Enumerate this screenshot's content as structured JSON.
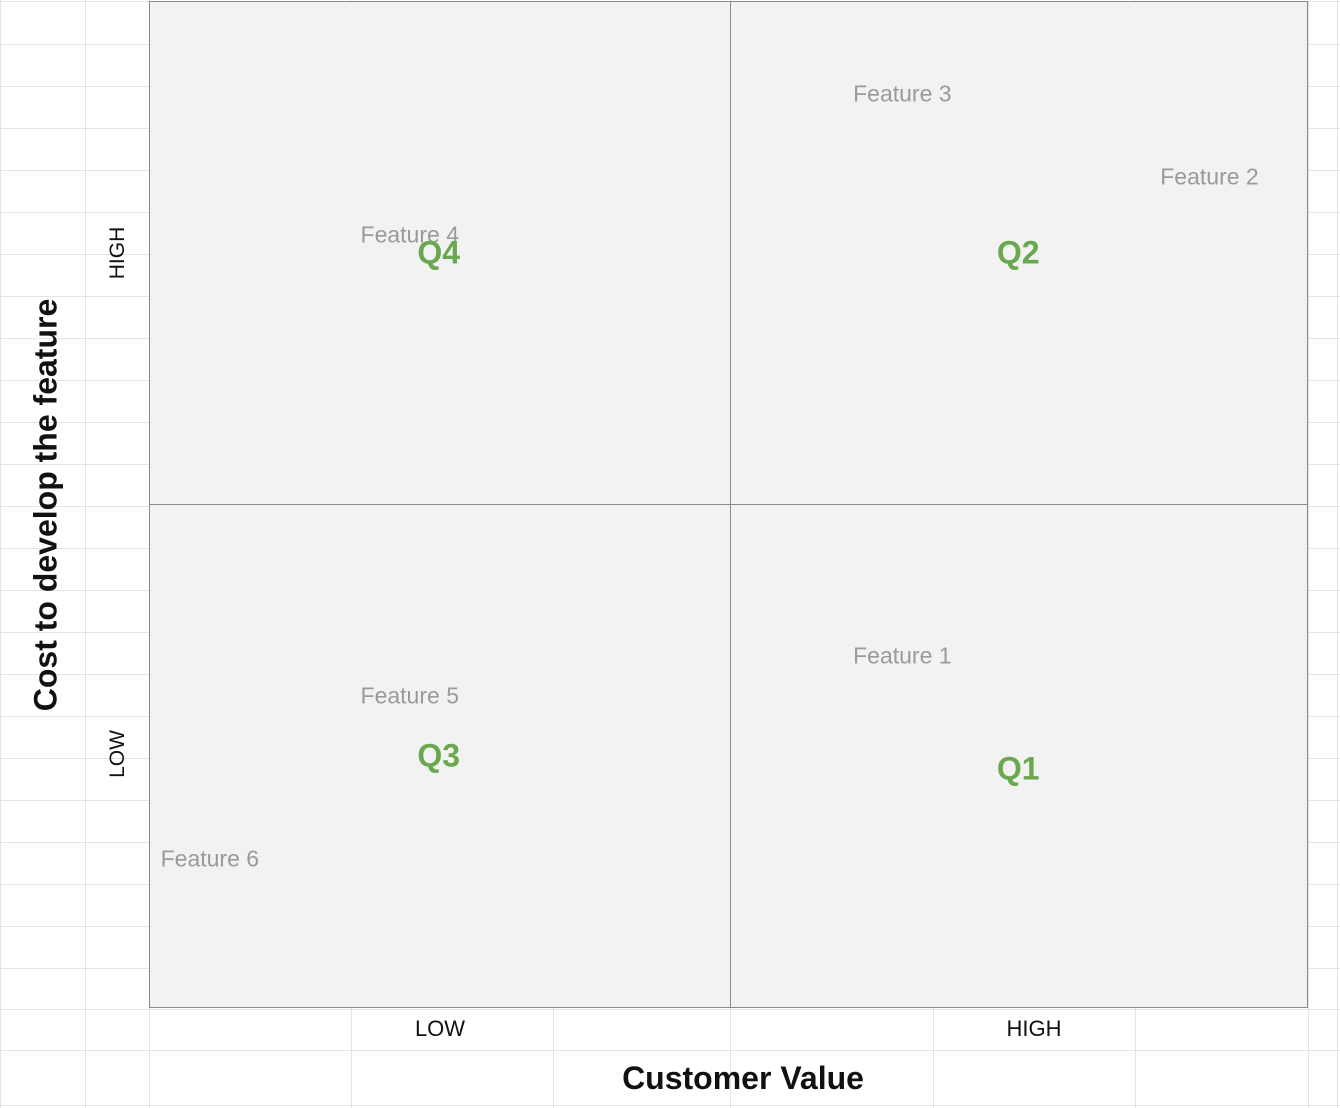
{
  "chart_data": {
    "type": "scatter",
    "title": "",
    "xlabel": "Customer Value",
    "ylabel": "Cost to develop the feature",
    "x_ticks": [
      "LOW",
      "HIGH"
    ],
    "y_ticks": [
      "LOW",
      "HIGH"
    ],
    "xlim": [
      0,
      4
    ],
    "ylim": [
      0,
      4
    ],
    "quadrants": [
      {
        "label": "Q4",
        "x": 1,
        "y": 3
      },
      {
        "label": "Q2",
        "x": 3,
        "y": 3
      },
      {
        "label": "Q3",
        "x": 1,
        "y": 1
      },
      {
        "label": "Q1",
        "x": 3,
        "y": 0.95
      }
    ],
    "points": [
      {
        "label": "Feature 1",
        "x": 2.6,
        "y": 1.4
      },
      {
        "label": "Feature 2",
        "x": 3.66,
        "y": 3.3
      },
      {
        "label": "Feature 3",
        "x": 2.6,
        "y": 3.63
      },
      {
        "label": "Feature 4",
        "x": 0.9,
        "y": 3.07
      },
      {
        "label": "Feature 5",
        "x": 0.9,
        "y": 1.24
      },
      {
        "label": "Feature 6",
        "x": 0.21,
        "y": 0.59
      }
    ],
    "colors": {
      "quadrant_label": "#6aa84f",
      "feature_label": "#9a9a9a",
      "plot_bg": "#f2f2f2",
      "border": "#8a8a8a"
    }
  }
}
